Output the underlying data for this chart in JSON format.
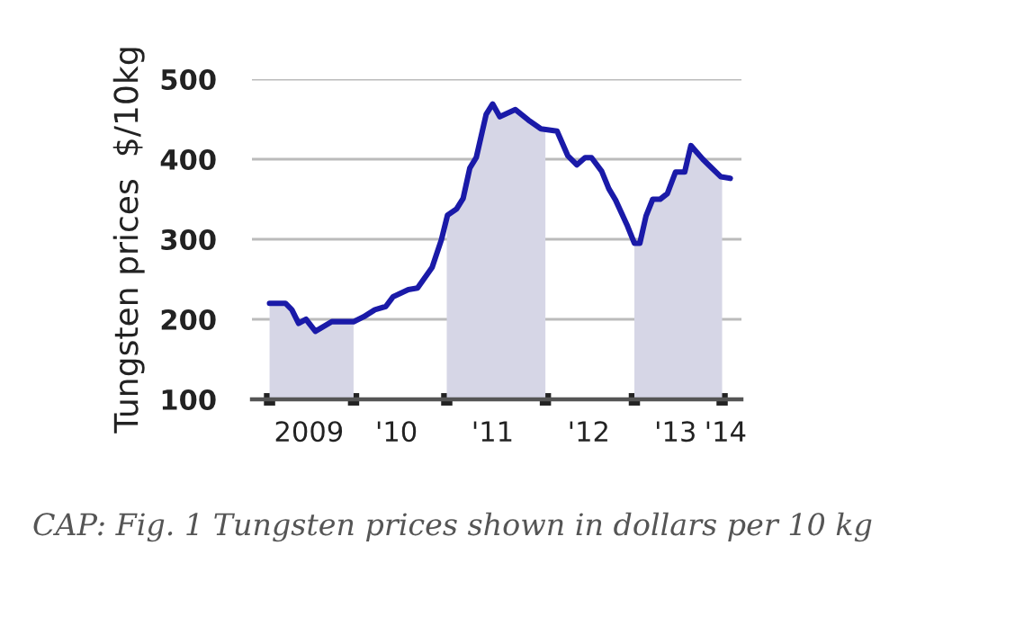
{
  "chart_data": {
    "type": "line",
    "ylabel": "Tungsten prices  $/10kg",
    "x": [
      "2009-01-01",
      "2009-03-06",
      "2009-04-01",
      "2009-04-28",
      "2009-05-28",
      "2009-07-05",
      "2009-09-09",
      "2009-12-06",
      "2010-01-15",
      "2010-03-02",
      "2010-04-15",
      "2010-05-14",
      "2010-07-15",
      "2010-08-21",
      "2010-10-19",
      "2010-11-25",
      "2010-12-20",
      "2011-01-26",
      "2011-02-21",
      "2011-03-20",
      "2011-04-15",
      "2011-05-25",
      "2011-06-20",
      "2011-07-19",
      "2011-09-20",
      "2011-11-11",
      "2012-01-01",
      "2012-03-06",
      "2012-04-19",
      "2012-05-25",
      "2012-06-27",
      "2012-07-23",
      "2012-09-02",
      "2012-10-01",
      "2012-10-28",
      "2012-12-13",
      "2013-01-12",
      "2013-02-03",
      "2013-02-28",
      "2013-03-27",
      "2013-04-26",
      "2013-05-25",
      "2013-06-27",
      "2013-08-03",
      "2013-08-28",
      "2013-10-15",
      "2013-11-07",
      "2013-12-27",
      "2014-02-03"
    ],
    "series": [
      {
        "color": "#1a1aa8",
        "values": [
          220,
          220,
          212,
          195,
          200,
          185,
          197,
          197,
          203,
          212,
          216,
          228,
          237,
          239,
          265,
          299,
          330,
          338,
          351,
          389,
          402,
          456,
          469,
          453,
          462,
          449,
          438,
          435,
          404,
          393,
          402,
          402,
          385,
          363,
          349,
          318,
          295,
          295,
          329,
          350,
          350,
          357,
          384,
          384,
          417,
          400,
          393,
          378,
          376
        ]
      }
    ],
    "xlim": [
      "2008-10-22",
      "2014-03-20"
    ],
    "ylim": [
      100,
      500
    ],
    "xticks": [
      {
        "value": "2009-01-01",
        "label": null
      },
      {
        "value": "2009-06-09",
        "label": "2009"
      },
      {
        "value": "2009-12-06",
        "label": null
      },
      {
        "value": "2010-05-28",
        "label": "'10"
      },
      {
        "value": "2010-12-17",
        "label": null
      },
      {
        "value": "2011-06-20",
        "label": "'11"
      },
      {
        "value": "2012-01-19",
        "label": null
      },
      {
        "value": "2012-07-12",
        "label": "'12"
      },
      {
        "value": "2013-01-12",
        "label": null
      },
      {
        "value": "2013-06-27",
        "label": "'13"
      },
      {
        "value": "2014-01-01",
        "label": null
      },
      {
        "value": "2014-01-15",
        "label": "'14"
      }
    ],
    "yticks": [
      100,
      200,
      300,
      400,
      500
    ],
    "grid": "y",
    "bands": [
      {
        "axis": "x",
        "from": "2009-01-01",
        "to": "2009-12-06",
        "color": "#d6d6e6"
      },
      {
        "axis": "x",
        "from": "2010-12-17",
        "to": "2012-01-19",
        "color": "#d6d6e6"
      },
      {
        "axis": "x",
        "from": "2013-01-12",
        "to": "2014-01-01",
        "color": "#d6d6e6"
      }
    ],
    "annotations": [
      "CAP: Fig. 1 Tungsten prices shown in dollars per 10 kg"
    ]
  }
}
